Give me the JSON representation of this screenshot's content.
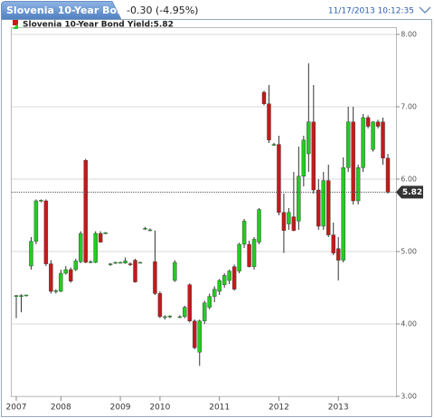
{
  "header": {
    "tab_title": "Slovenia 10-Year Bo...",
    "change": "-0.30 (-4.95%)",
    "timestamp": "11/17/2013 10:12:35"
  },
  "chart_data": {
    "type": "candlestick",
    "legend": "Slovenia 10-Year Bond Yield:5.82",
    "up_color": "#22cc22",
    "down_color": "#c41a1a",
    "categories": [
      "2007",
      null,
      null,
      null,
      null,
      null,
      null,
      null,
      null,
      "2008",
      null,
      null,
      null,
      null,
      null,
      null,
      null,
      null,
      null,
      null,
      null,
      "2009",
      null,
      null,
      null,
      null,
      null,
      null,
      null,
      "2010",
      null,
      null,
      null,
      null,
      null,
      null,
      null,
      null,
      null,
      null,
      null,
      "2011",
      null,
      null,
      null,
      null,
      null,
      null,
      null,
      null,
      null,
      null,
      null,
      "2012",
      null,
      null,
      null,
      null,
      null,
      null,
      null,
      null,
      null,
      null,
      null,
      "2013",
      null,
      null,
      null,
      null,
      null,
      null,
      null,
      null,
      null,
      null
    ],
    "open": [
      4.38,
      4.39,
      4.39,
      4.8,
      5.14,
      5.7,
      5.7,
      4.83,
      4.45,
      4.45,
      4.7,
      4.75,
      4.75,
      4.86,
      6.26,
      4.85,
      4.85,
      5.25,
      5.26,
      4.82,
      4.84,
      4.85,
      4.84,
      4.83,
      4.88,
      4.85,
      5.32,
      5.3,
      4.86,
      4.42,
      4.1,
      4.1,
      4.6,
      4.1,
      4.1,
      4.54,
      4.04,
      3.61,
      4.04,
      4.23,
      4.38,
      4.45,
      4.54,
      4.6,
      4.79,
      4.73,
      5.1,
      5.1,
      4.79,
      5.13,
      7.2,
      7.04,
      6.48,
      6.48,
      5.54,
      5.38,
      5.48,
      5.42,
      6.04,
      6.35,
      6.79,
      5.85,
      5.35,
      5.98,
      5.23,
      5.04,
      4.88,
      6.16,
      6.79,
      5.7,
      6.16,
      6.85,
      6.41,
      6.79,
      6.79,
      6.29
    ],
    "high": [
      4.4,
      4.41,
      4.4,
      5.2,
      5.72,
      5.72,
      5.72,
      4.88,
      4.48,
      4.75,
      4.8,
      4.78,
      4.9,
      5.28,
      6.28,
      4.88,
      5.28,
      5.28,
      5.27,
      4.84,
      4.86,
      4.86,
      4.92,
      4.85,
      4.9,
      4.86,
      5.34,
      5.32,
      5.29,
      4.45,
      4.12,
      4.12,
      4.88,
      4.12,
      4.25,
      4.56,
      4.06,
      4.06,
      4.32,
      4.42,
      4.52,
      4.62,
      4.7,
      4.75,
      4.82,
      5.12,
      5.45,
      5.15,
      5.2,
      5.6,
      7.22,
      7.3,
      6.5,
      6.6,
      5.8,
      5.6,
      6.1,
      6.45,
      6.6,
      7.6,
      7.3,
      6.0,
      6.1,
      6.2,
      5.4,
      5.2,
      6.3,
      7.0,
      7.0,
      6.2,
      6.9,
      6.88,
      6.8,
      6.82,
      6.85,
      6.35
    ],
    "low": [
      4.08,
      4.16,
      4.38,
      4.75,
      5.1,
      5.68,
      4.8,
      4.42,
      4.42,
      4.44,
      4.68,
      4.57,
      4.73,
      4.84,
      4.84,
      4.84,
      4.84,
      5.12,
      5.24,
      4.8,
      4.83,
      4.84,
      4.83,
      4.8,
      4.57,
      4.84,
      5.3,
      5.28,
      4.4,
      4.08,
      4.06,
      4.08,
      4.58,
      4.08,
      4.08,
      4.02,
      3.65,
      3.42,
      4.0,
      4.2,
      4.3,
      4.4,
      4.5,
      4.55,
      4.46,
      4.7,
      5.05,
      4.78,
      4.75,
      5.1,
      7.02,
      6.5,
      6.46,
      5.5,
      4.98,
      5.3,
      5.28,
      5.3,
      5.9,
      6.1,
      5.8,
      5.3,
      5.3,
      5.2,
      4.95,
      4.6,
      4.85,
      6.1,
      5.65,
      5.65,
      6.1,
      6.7,
      6.38,
      6.7,
      6.2,
      5.8
    ],
    "close": [
      4.39,
      4.39,
      4.4,
      5.14,
      5.7,
      5.71,
      4.83,
      4.45,
      4.46,
      4.7,
      4.75,
      4.59,
      4.87,
      5.25,
      4.85,
      4.86,
      5.25,
      5.13,
      5.26,
      4.83,
      4.85,
      4.85,
      4.87,
      4.82,
      4.58,
      4.85,
      5.32,
      5.3,
      4.42,
      4.1,
      4.1,
      4.11,
      4.85,
      4.1,
      4.23,
      4.04,
      3.67,
      4.04,
      4.29,
      4.38,
      4.48,
      4.6,
      4.67,
      4.73,
      4.48,
      5.1,
      5.42,
      4.79,
      5.17,
      5.58,
      7.04,
      6.54,
      6.48,
      5.54,
      5.29,
      5.54,
      5.29,
      6.04,
      6.54,
      6.79,
      5.85,
      5.35,
      5.98,
      5.23,
      4.98,
      4.88,
      6.16,
      6.79,
      5.7,
      6.16,
      6.85,
      6.73,
      6.79,
      6.73,
      6.29,
      5.82
    ],
    "last_value": 5.82,
    "ylim": [
      3.0,
      8.0
    ],
    "yticks": [
      {
        "value": 8,
        "label": "8.00"
      },
      {
        "value": 7,
        "label": "7.00"
      },
      {
        "value": 6,
        "label": "6.00"
      },
      {
        "value": 5,
        "label": "5.00"
      },
      {
        "value": 4,
        "label": "4.00"
      },
      {
        "value": 3,
        "label": "3.00"
      }
    ],
    "grid": true
  }
}
